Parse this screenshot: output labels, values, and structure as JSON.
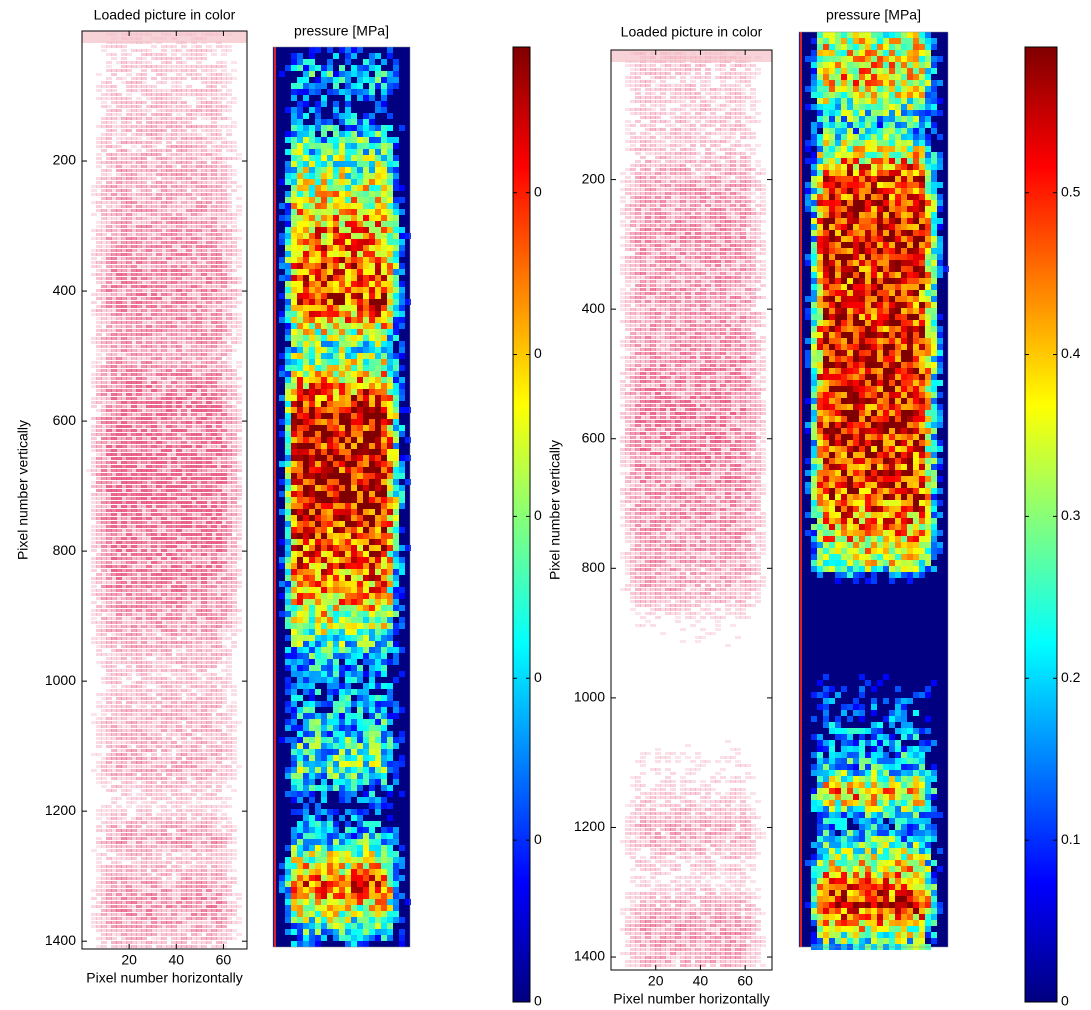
{
  "figures": [
    {
      "image_panel": {
        "title": "Loaded picture in color",
        "xlabel": "Pixel number horizontally",
        "ylabel": "Pixel number vertically",
        "xlim": [
          0,
          70
        ],
        "ylim": [
          0,
          1412
        ],
        "xticks": [
          20,
          40,
          60
        ],
        "yticks": [
          200,
          400,
          600,
          800,
          1000,
          1200,
          1400
        ]
      },
      "pressure_panel": {
        "title": "pressure [MPa]"
      },
      "colorbar": {
        "colormap": "jet",
        "clim": [
          0,
          0.59
        ],
        "ticks": [
          0,
          {
            "value": 0.1,
            "label": "0"
          },
          {
            "value": 0.2,
            "label": "0"
          },
          {
            "value": 0.3,
            "label": "0"
          },
          {
            "value": 0.4,
            "label": "0"
          },
          {
            "value": 0.5,
            "label": "0"
          }
        ]
      }
    },
    {
      "image_panel": {
        "title": "Loaded picture in color",
        "xlabel": "Pixel number horizontally",
        "ylabel": "Pixel number vertically",
        "xlim": [
          0,
          72
        ],
        "ylim": [
          0,
          1420
        ],
        "xticks": [
          20,
          40,
          60
        ],
        "yticks": [
          200,
          400,
          600,
          800,
          1000,
          1200,
          1400
        ]
      },
      "pressure_panel": {
        "title": "pressure [MPa]"
      },
      "colorbar": {
        "colormap": "jet",
        "clim": [
          0,
          0.59
        ],
        "ticks": [
          0,
          0.1,
          0.2,
          0.3,
          0.4,
          0.5
        ]
      }
    }
  ]
}
